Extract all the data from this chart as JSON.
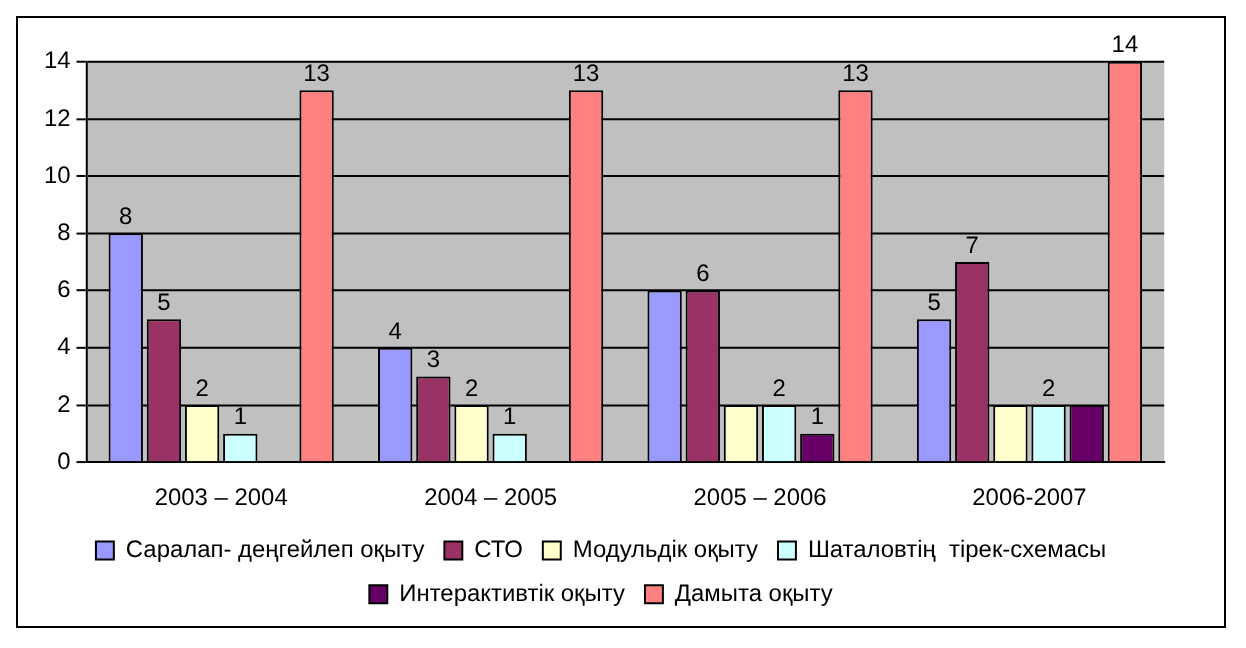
{
  "chart_data": {
    "type": "bar",
    "categories": [
      "2003 – 2004",
      "2004 – 2005",
      "2005 – 2006",
      "2006-2007"
    ],
    "series": [
      {
        "name": "Саралап- деңгейлеп оқыту",
        "color": "#9999ff",
        "values": [
          8,
          4,
          6,
          5
        ],
        "value_labels": [
          "8",
          "4",
          null,
          "5"
        ]
      },
      {
        "name": "СТО",
        "color": "#993366",
        "values": [
          5,
          3,
          6,
          7
        ],
        "value_labels": [
          "5",
          "3",
          "6",
          "7"
        ]
      },
      {
        "name": "Модульдік оқыту",
        "color": "#ffffcc",
        "values": [
          2,
          2,
          2,
          2
        ],
        "value_labels": [
          "2",
          "2",
          null,
          null
        ]
      },
      {
        "name": "Шаталовтің  тірек-схемасы",
        "color": "#ccffff",
        "values": [
          1,
          1,
          2,
          2
        ],
        "value_labels": [
          "1",
          "1",
          "2",
          "2"
        ]
      },
      {
        "name": "Интерактивтік оқыту",
        "color": "#660066",
        "values": [
          null,
          null,
          1,
          2
        ],
        "value_labels": [
          null,
          null,
          "1",
          null
        ]
      },
      {
        "name": "Дамыта оқыту",
        "color": "#ff8080",
        "values": [
          13,
          13,
          13,
          14
        ],
        "value_labels": [
          "13",
          "13",
          "13",
          "14"
        ]
      }
    ],
    "ylim": [
      0,
      14
    ],
    "yticks": [
      0,
      2,
      4,
      6,
      8,
      10,
      12,
      14
    ],
    "grid": "y",
    "legend": "bottom"
  }
}
